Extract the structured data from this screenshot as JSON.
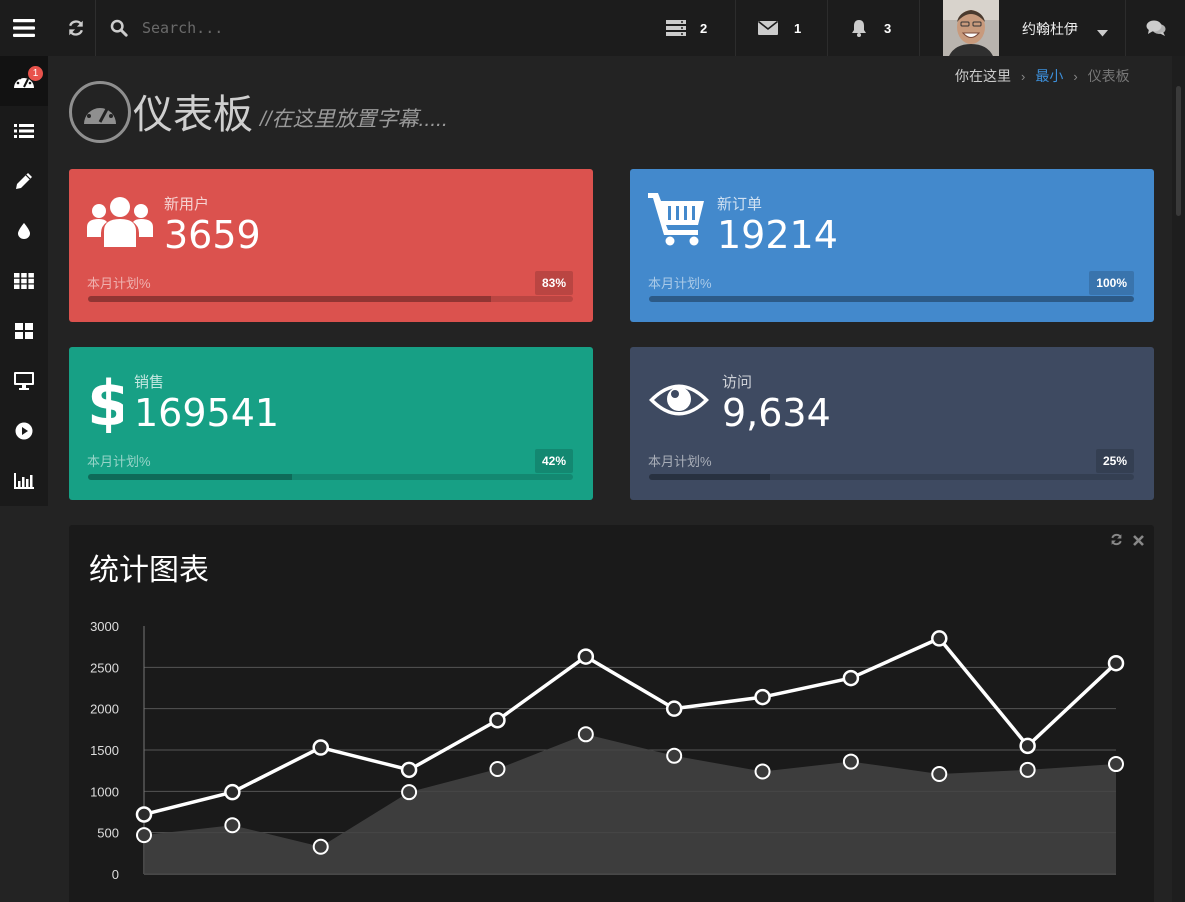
{
  "topbar": {
    "search_placeholder": "Search...",
    "notifications": [
      {
        "icon": "server-icon",
        "count": "2"
      },
      {
        "icon": "envelope-icon",
        "count": "1"
      },
      {
        "icon": "bell-icon",
        "count": "3"
      }
    ],
    "username": "约翰杜伊"
  },
  "sidebar": {
    "items": [
      {
        "icon": "dashboard-icon",
        "badge": "1"
      },
      {
        "icon": "list-icon"
      },
      {
        "icon": "pencil-icon"
      },
      {
        "icon": "tint-icon"
      },
      {
        "icon": "grid-icon"
      },
      {
        "icon": "widgets-icon"
      },
      {
        "icon": "desktop-icon"
      },
      {
        "icon": "play-circle-icon"
      },
      {
        "icon": "bar-chart-icon"
      }
    ]
  },
  "breadcrumb": {
    "label": "你在这里",
    "link": "最小",
    "current": "仪表板"
  },
  "page": {
    "title": "仪表板",
    "subtitle": "//在这里放置字幕....."
  },
  "cards": [
    {
      "label": "新用户",
      "value": "3659",
      "plan": "本月计划%",
      "percent_text": "83%",
      "percent": 83,
      "icon": "users-icon",
      "color": "#db524e"
    },
    {
      "label": "新订单",
      "value": "19214",
      "plan": "本月计划%",
      "percent_text": "100%",
      "percent": 100,
      "icon": "cart-icon",
      "color": "#4389cc"
    },
    {
      "label": "销售",
      "value": "169541",
      "plan": "本月计划%",
      "percent_text": "42%",
      "percent": 42,
      "icon": "dollar-icon",
      "color": "#17a085"
    },
    {
      "label": "访问",
      "value": "9,634",
      "plan": "本月计划%",
      "percent_text": "25%",
      "percent": 25,
      "icon": "eye-icon",
      "color": "#3e4a61"
    }
  ],
  "panel": {
    "title": "统计图表"
  },
  "chart_data": {
    "type": "line",
    "title": "统计图表",
    "xlabel": "",
    "ylabel": "",
    "ylim": [
      0,
      3000
    ],
    "yticks": [
      "0",
      "500",
      "1000",
      "1500",
      "2000",
      "2500",
      "3000"
    ],
    "grid": true,
    "series": [
      {
        "style": "line",
        "color": "#ffffff",
        "values": [
          720,
          990,
          1530,
          1260,
          1860,
          2630,
          2000,
          2140,
          2370,
          2850,
          1550,
          2550
        ]
      },
      {
        "style": "area",
        "color": "#444444",
        "values": [
          470,
          590,
          330,
          990,
          1270,
          1690,
          1430,
          1240,
          1360,
          1210,
          1260,
          1330
        ]
      }
    ]
  }
}
